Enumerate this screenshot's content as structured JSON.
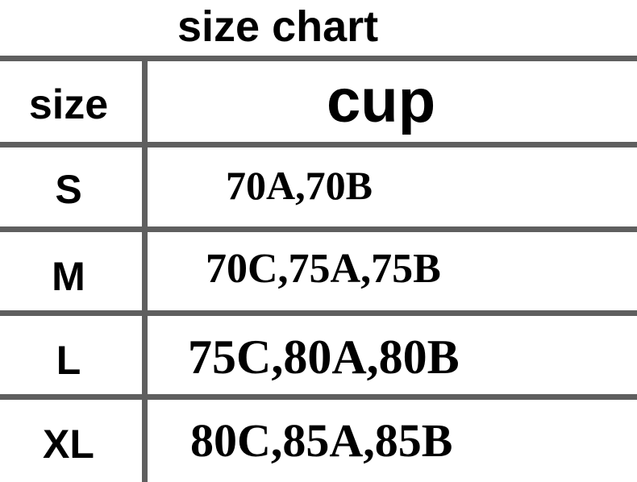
{
  "title": "size chart",
  "headers": {
    "size": "size",
    "cup": "cup"
  },
  "rows": [
    {
      "size": "S",
      "cup": "70A,70B"
    },
    {
      "size": "M",
      "cup": "70C,75A,75B"
    },
    {
      "size": "L",
      "cup": "75C,80A,80B"
    },
    {
      "size": "XL",
      "cup": "80C,85A,85B"
    }
  ]
}
